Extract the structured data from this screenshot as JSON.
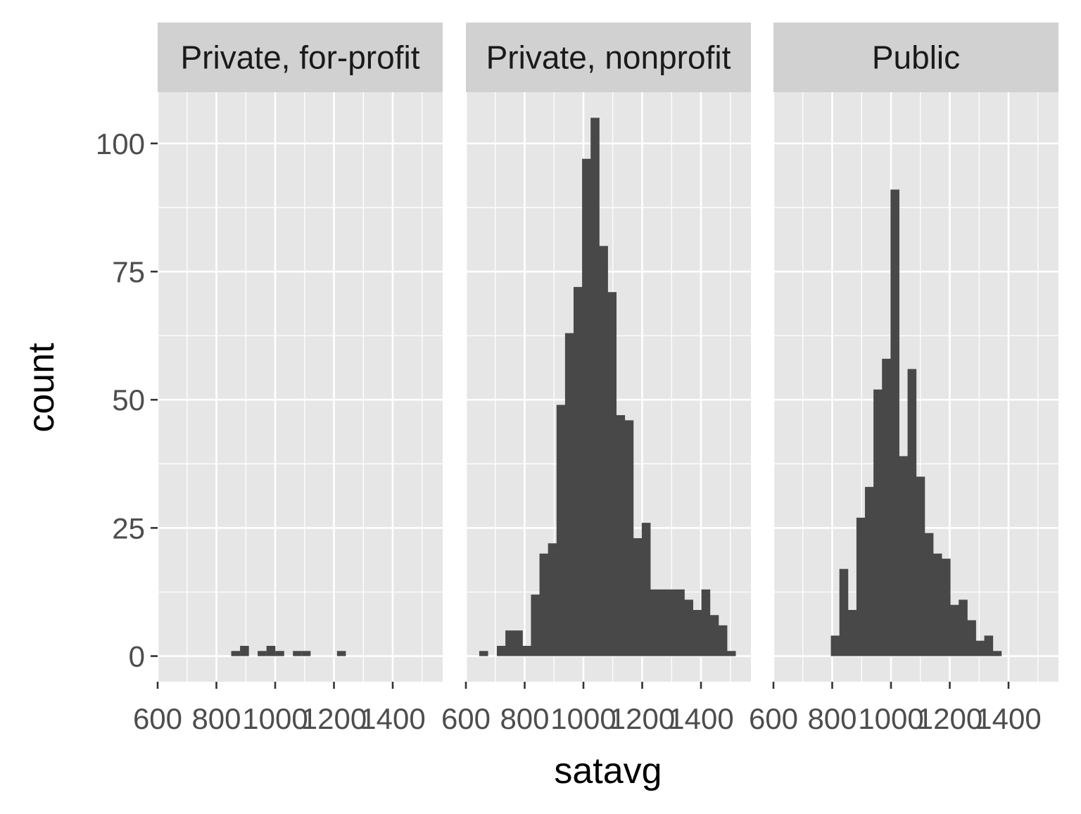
{
  "chart_data": {
    "type": "bar",
    "subtype": "faceted-histogram",
    "xlabel": "satavg",
    "ylabel": "count",
    "xlim": [
      600,
      1570
    ],
    "ylim": [
      -5,
      110
    ],
    "x_ticks": [
      "600",
      "800",
      "1000",
      "1200",
      "1400"
    ],
    "y_ticks": [
      "0",
      "25",
      "50",
      "75",
      "100"
    ],
    "bin_width": 29.2,
    "panel_background": "#e6e6e6",
    "strip_background": "#d1d1d1",
    "bar_color": "#484848",
    "grid_color": "#ffffff",
    "facets": [
      {
        "label": "Private, for-profit",
        "bins": [
          {
            "x": 865,
            "count": 1
          },
          {
            "x": 895,
            "count": 2
          },
          {
            "x": 955,
            "count": 1
          },
          {
            "x": 985,
            "count": 2
          },
          {
            "x": 1015,
            "count": 1
          },
          {
            "x": 1075,
            "count": 1
          },
          {
            "x": 1105,
            "count": 1
          },
          {
            "x": 1225,
            "count": 1
          }
        ]
      },
      {
        "label": "Private, nonprofit",
        "bins": [
          {
            "x": 660,
            "count": 1
          },
          {
            "x": 720,
            "count": 2
          },
          {
            "x": 749,
            "count": 5
          },
          {
            "x": 778,
            "count": 5
          },
          {
            "x": 807,
            "count": 2
          },
          {
            "x": 836,
            "count": 12
          },
          {
            "x": 865,
            "count": 20
          },
          {
            "x": 894,
            "count": 22
          },
          {
            "x": 923,
            "count": 49
          },
          {
            "x": 952,
            "count": 63
          },
          {
            "x": 981,
            "count": 72
          },
          {
            "x": 1010,
            "count": 97
          },
          {
            "x": 1039,
            "count": 105
          },
          {
            "x": 1068,
            "count": 80
          },
          {
            "x": 1097,
            "count": 71
          },
          {
            "x": 1126,
            "count": 47
          },
          {
            "x": 1155,
            "count": 46
          },
          {
            "x": 1184,
            "count": 23
          },
          {
            "x": 1213,
            "count": 26
          },
          {
            "x": 1242,
            "count": 13
          },
          {
            "x": 1271,
            "count": 13
          },
          {
            "x": 1300,
            "count": 13
          },
          {
            "x": 1329,
            "count": 13
          },
          {
            "x": 1358,
            "count": 11
          },
          {
            "x": 1387,
            "count": 9
          },
          {
            "x": 1416,
            "count": 13
          },
          {
            "x": 1445,
            "count": 8
          },
          {
            "x": 1474,
            "count": 6
          },
          {
            "x": 1503,
            "count": 1
          }
        ]
      },
      {
        "label": "Public",
        "bins": [
          {
            "x": 810,
            "count": 4
          },
          {
            "x": 839,
            "count": 17
          },
          {
            "x": 868,
            "count": 9
          },
          {
            "x": 897,
            "count": 27
          },
          {
            "x": 926,
            "count": 33
          },
          {
            "x": 955,
            "count": 52
          },
          {
            "x": 984,
            "count": 58
          },
          {
            "x": 1013,
            "count": 91
          },
          {
            "x": 1042,
            "count": 39
          },
          {
            "x": 1071,
            "count": 56
          },
          {
            "x": 1100,
            "count": 35
          },
          {
            "x": 1129,
            "count": 24
          },
          {
            "x": 1158,
            "count": 20
          },
          {
            "x": 1187,
            "count": 19
          },
          {
            "x": 1216,
            "count": 10
          },
          {
            "x": 1245,
            "count": 11
          },
          {
            "x": 1274,
            "count": 7
          },
          {
            "x": 1303,
            "count": 3
          },
          {
            "x": 1332,
            "count": 4
          },
          {
            "x": 1361,
            "count": 1
          }
        ]
      }
    ]
  }
}
